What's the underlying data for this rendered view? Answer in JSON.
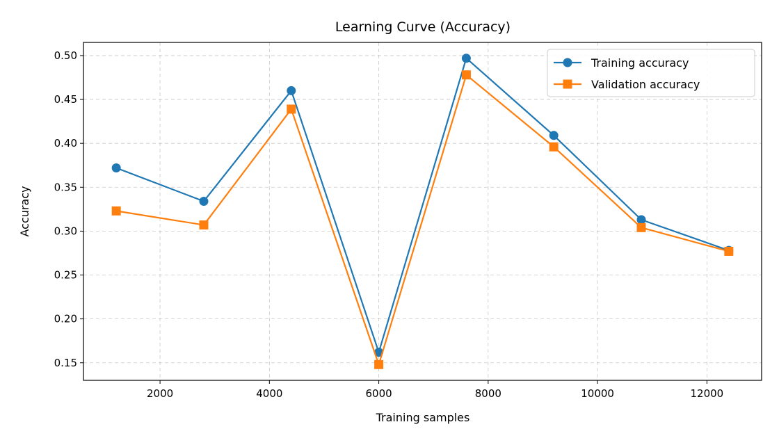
{
  "chart_data": {
    "type": "line",
    "title": "Learning Curve (Accuracy)",
    "xlabel": "Training samples",
    "ylabel": "Accuracy",
    "x": [
      1200,
      2800,
      4400,
      6000,
      7600,
      9200,
      10800,
      12400
    ],
    "xlim": [
      600,
      13000
    ],
    "ylim": [
      0.13,
      0.515
    ],
    "xticks": [
      2000,
      4000,
      6000,
      8000,
      10000,
      12000
    ],
    "yticks": [
      0.15,
      0.2,
      0.25,
      0.3,
      0.35,
      0.4,
      0.45,
      0.5
    ],
    "xtick_labels": [
      "2000",
      "4000",
      "6000",
      "8000",
      "10000",
      "12000"
    ],
    "ytick_labels": [
      "0.15",
      "0.20",
      "0.25",
      "0.30",
      "0.35",
      "0.40",
      "0.45",
      "0.50"
    ],
    "grid": true,
    "legend_position": "top-right",
    "series": [
      {
        "name": "Training accuracy",
        "color": "#1f77b4",
        "marker": "circle",
        "values": [
          0.372,
          0.334,
          0.46,
          0.162,
          0.497,
          0.409,
          0.313,
          0.278
        ]
      },
      {
        "name": "Validation accuracy",
        "color": "#ff7f0e",
        "marker": "square",
        "values": [
          0.323,
          0.307,
          0.439,
          0.148,
          0.478,
          0.396,
          0.304,
          0.277
        ]
      }
    ]
  }
}
